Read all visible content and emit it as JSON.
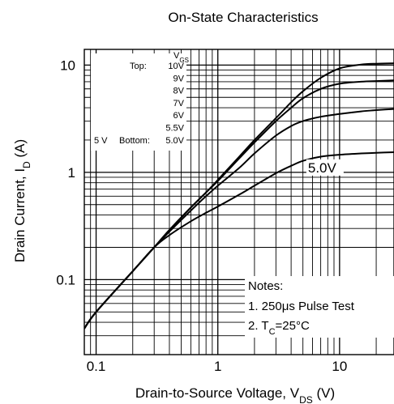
{
  "chart_data": {
    "type": "line",
    "title": "On-State Characteristics",
    "xlabel": {
      "prefix": "Drain-to-Source Voltage, V",
      "sub": "DS",
      "suffix": " (V)"
    },
    "ylabel": {
      "prefix": "Drain Current, I",
      "sub": "D",
      "suffix": " (A)"
    },
    "x_scale": "log",
    "y_scale": "log",
    "xlim": [
      0.08,
      28
    ],
    "ylim": [
      0.02,
      14
    ],
    "grid": true,
    "x_ticks": [
      {
        "value": 0.1,
        "label": "0.1"
      },
      {
        "value": 1,
        "label": "1"
      },
      {
        "value": 10,
        "label": "10"
      }
    ],
    "y_ticks": [
      {
        "value": 0.1,
        "label": "0.1"
      },
      {
        "value": 1,
        "label": "1"
      },
      {
        "value": 10,
        "label": "10"
      }
    ],
    "legend": {
      "position": "top-left",
      "header": {
        "prefix": "V",
        "sub": "GS"
      },
      "top_label": "Top:",
      "bottom_label": "Bottom:",
      "left_note": "5 V",
      "values": [
        "10V",
        "9V",
        "8V",
        "7V",
        "6V",
        "5.5V",
        "5.0V"
      ]
    },
    "annotations": [
      {
        "text": "5.0V",
        "x": 5.5,
        "y": 1.0
      }
    ],
    "notes": {
      "title": "Notes:",
      "line1": "1. 250μs Pulse Test",
      "line2_prefix": "2. T",
      "line2_sub": "C",
      "line2_suffix": "=25°C"
    },
    "series": [
      {
        "x": [
          0.08,
          0.1,
          0.2,
          0.3,
          0.4,
          0.6,
          0.8,
          1,
          1.5,
          2,
          3,
          4,
          5,
          7,
          10,
          15,
          20,
          28
        ],
        "y": [
          0.035,
          0.05,
          0.12,
          0.2,
          0.29,
          0.47,
          0.65,
          0.85,
          1.4,
          2.0,
          3.2,
          4.5,
          5.7,
          7.6,
          9.3,
          10.1,
          10.3,
          10.4
        ]
      },
      {
        "x": [
          0.08,
          0.1,
          0.2,
          0.3,
          0.4,
          0.6,
          0.8,
          1,
          1.5,
          2,
          3,
          4,
          5,
          7,
          10,
          15,
          20,
          28
        ],
        "y": [
          0.035,
          0.05,
          0.12,
          0.2,
          0.29,
          0.47,
          0.65,
          0.83,
          1.35,
          1.9,
          3.0,
          4.0,
          4.9,
          6.0,
          6.7,
          7.0,
          7.1,
          7.2
        ]
      },
      {
        "x": [
          0.08,
          0.1,
          0.2,
          0.3,
          0.4,
          0.6,
          0.8,
          1,
          1.5,
          2,
          3,
          4,
          5,
          7,
          10,
          15,
          20,
          28
        ],
        "y": [
          0.035,
          0.05,
          0.12,
          0.2,
          0.28,
          0.44,
          0.6,
          0.75,
          1.1,
          1.5,
          2.2,
          2.7,
          3.0,
          3.3,
          3.5,
          3.7,
          3.8,
          3.9
        ]
      },
      {
        "x": [
          0.08,
          0.1,
          0.2,
          0.3,
          0.4,
          0.6,
          0.8,
          1,
          1.5,
          2,
          3,
          4,
          5,
          7,
          10,
          15,
          20,
          28
        ],
        "y": [
          0.035,
          0.05,
          0.12,
          0.2,
          0.26,
          0.35,
          0.42,
          0.48,
          0.62,
          0.75,
          0.98,
          1.15,
          1.28,
          1.4,
          1.46,
          1.5,
          1.52,
          1.54
        ]
      }
    ]
  }
}
